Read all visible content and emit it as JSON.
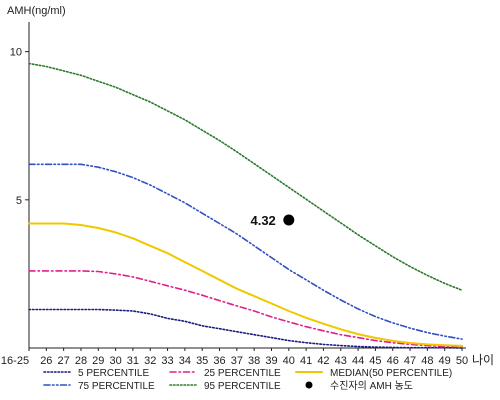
{
  "chart_data": {
    "type": "line",
    "ylabel": "AMH(ng/ml)",
    "xlabel": "나이",
    "ylim": [
      0,
      11
    ],
    "yticks": [
      5,
      10
    ],
    "categories": [
      "16-25",
      "26",
      "27",
      "28",
      "29",
      "30",
      "31",
      "32",
      "33",
      "34",
      "35",
      "36",
      "37",
      "38",
      "39",
      "40",
      "41",
      "42",
      "43",
      "44",
      "45",
      "46",
      "47",
      "48",
      "49",
      "50"
    ],
    "series": [
      {
        "name": "5 PERCENTILE",
        "color": "#1a1a80",
        "style": "dotted",
        "values": [
          1.3,
          1.3,
          1.3,
          1.3,
          1.3,
          1.28,
          1.25,
          1.15,
          1.0,
          0.9,
          0.75,
          0.65,
          0.55,
          0.45,
          0.35,
          0.25,
          0.18,
          0.12,
          0.08,
          0.05,
          0.03,
          0.02,
          0.01,
          0.01,
          0.01,
          0.0
        ]
      },
      {
        "name": "25 PERCENTILE",
        "color": "#e0208a",
        "style": "dash-dot",
        "values": [
          2.6,
          2.6,
          2.6,
          2.6,
          2.58,
          2.5,
          2.4,
          2.25,
          2.1,
          1.95,
          1.78,
          1.6,
          1.42,
          1.25,
          1.05,
          0.88,
          0.72,
          0.58,
          0.45,
          0.35,
          0.25,
          0.18,
          0.12,
          0.08,
          0.05,
          0.03
        ]
      },
      {
        "name": "MEDIAN(50 PERCENTILE)",
        "color": "#f0c800",
        "style": "solid",
        "values": [
          4.2,
          4.2,
          4.2,
          4.15,
          4.05,
          3.9,
          3.7,
          3.45,
          3.2,
          2.9,
          2.6,
          2.3,
          2.0,
          1.75,
          1.5,
          1.25,
          1.02,
          0.82,
          0.63,
          0.47,
          0.34,
          0.24,
          0.17,
          0.12,
          0.09,
          0.07
        ]
      },
      {
        "name": "75 PERCENTILE",
        "color": "#3050c0",
        "style": "dash-dot-dot",
        "values": [
          6.2,
          6.2,
          6.2,
          6.2,
          6.1,
          5.95,
          5.75,
          5.5,
          5.2,
          4.9,
          4.55,
          4.2,
          3.85,
          3.45,
          3.05,
          2.65,
          2.3,
          1.95,
          1.62,
          1.32,
          1.06,
          0.85,
          0.67,
          0.52,
          0.4,
          0.3
        ]
      },
      {
        "name": "95 PERCENTILE",
        "color": "#2a7a2a",
        "style": "dotted",
        "values": [
          9.6,
          9.5,
          9.35,
          9.2,
          9.0,
          8.8,
          8.55,
          8.3,
          8.0,
          7.7,
          7.35,
          7.0,
          6.62,
          6.22,
          5.82,
          5.42,
          5.02,
          4.62,
          4.22,
          3.82,
          3.45,
          3.08,
          2.75,
          2.45,
          2.18,
          1.95
        ]
      }
    ],
    "marker": {
      "name": "수진자의 AMH 농도",
      "x": "40",
      "y": 4.32,
      "label": "4.32"
    }
  }
}
